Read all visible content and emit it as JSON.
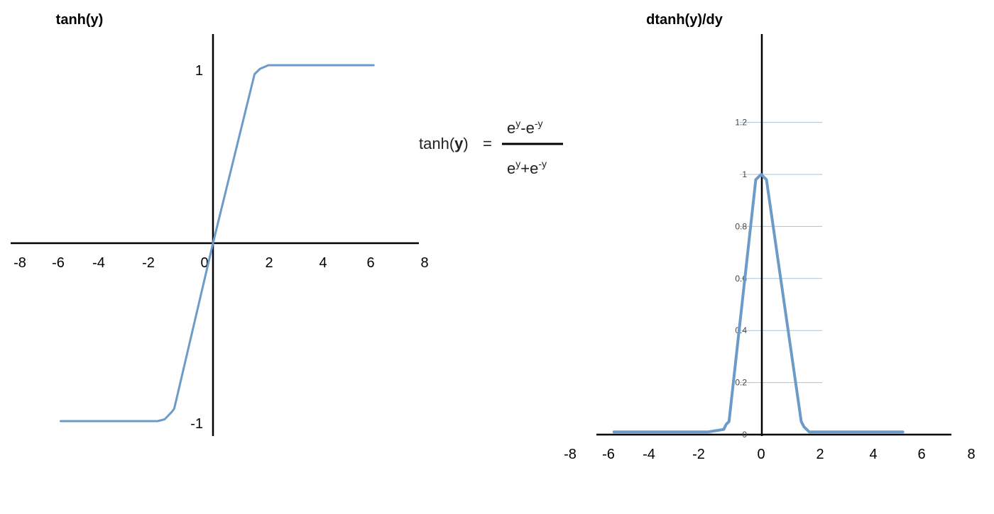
{
  "chart_data": [
    {
      "id": "tanh",
      "type": "line",
      "title": "tanh(y)",
      "xlabel": "",
      "ylabel": "",
      "xlim": [
        -8,
        8
      ],
      "ylim": [
        -1,
        1
      ],
      "x_ticks": [
        "-8",
        "-6",
        "-4",
        "-2",
        "0",
        "2",
        "4",
        "6",
        "8"
      ],
      "y_ticks": [
        {
          "value": 1,
          "label": "1"
        },
        {
          "value": -1,
          "label": "-1"
        }
      ],
      "grid": false,
      "color": "#6c9bc8",
      "series": [
        {
          "x": [
            -5.5,
            -3.5,
            -2.0,
            -1.75,
            -1.5,
            -1.4,
            0,
            1.5,
            1.7,
            2.0,
            2.5,
            3.5,
            5.8
          ],
          "y": [
            -1.0,
            -1.0,
            -1.0,
            -0.99,
            -0.95,
            -0.93,
            0.0,
            0.95,
            0.98,
            1.0,
            1.0,
            1.0,
            1.0
          ]
        }
      ]
    },
    {
      "id": "dtanh",
      "type": "line",
      "title": "dtanh(y)/dy",
      "xlabel": "",
      "ylabel": "",
      "xlim": [
        -8,
        8
      ],
      "ylim": [
        0,
        1.2
      ],
      "x_ticks": [
        "-8",
        "-6",
        "-4",
        "-2",
        "0",
        "2",
        "4",
        "6",
        "8"
      ],
      "y_ticks": [
        {
          "value": 0,
          "label": "0"
        },
        {
          "value": 0.2,
          "label": "0.2"
        },
        {
          "value": 0.4,
          "label": "0.4"
        },
        {
          "value": 0.6,
          "label": "0.6"
        },
        {
          "value": 0.8,
          "label": "0.8"
        },
        {
          "value": 1.0,
          "label": "1"
        },
        {
          "value": 1.2,
          "label": "1.2"
        }
      ],
      "grid": true,
      "color": "#6c9bc8",
      "series": [
        {
          "x": [
            -5.5,
            -2.0,
            -1.4,
            -1.3,
            -1.2,
            -0.2,
            0,
            0.2,
            1.5,
            1.6,
            1.8,
            2.0,
            5.3
          ],
          "y": [
            0.01,
            0.01,
            0.02,
            0.04,
            0.05,
            0.98,
            1.0,
            0.98,
            0.05,
            0.03,
            0.01,
            0.01,
            0.01
          ]
        }
      ]
    }
  ],
  "formula": {
    "lhs": "tanh(",
    "lhs_var": "y",
    "lhs_close": ")",
    "equals": "=",
    "num_e1": "e",
    "num_sup1": "y",
    "num_mid": "-e",
    "num_sup2": "-y",
    "den_e1": "e",
    "den_sup1": "y",
    "den_mid": "+e",
    "den_sup2": "-y"
  }
}
